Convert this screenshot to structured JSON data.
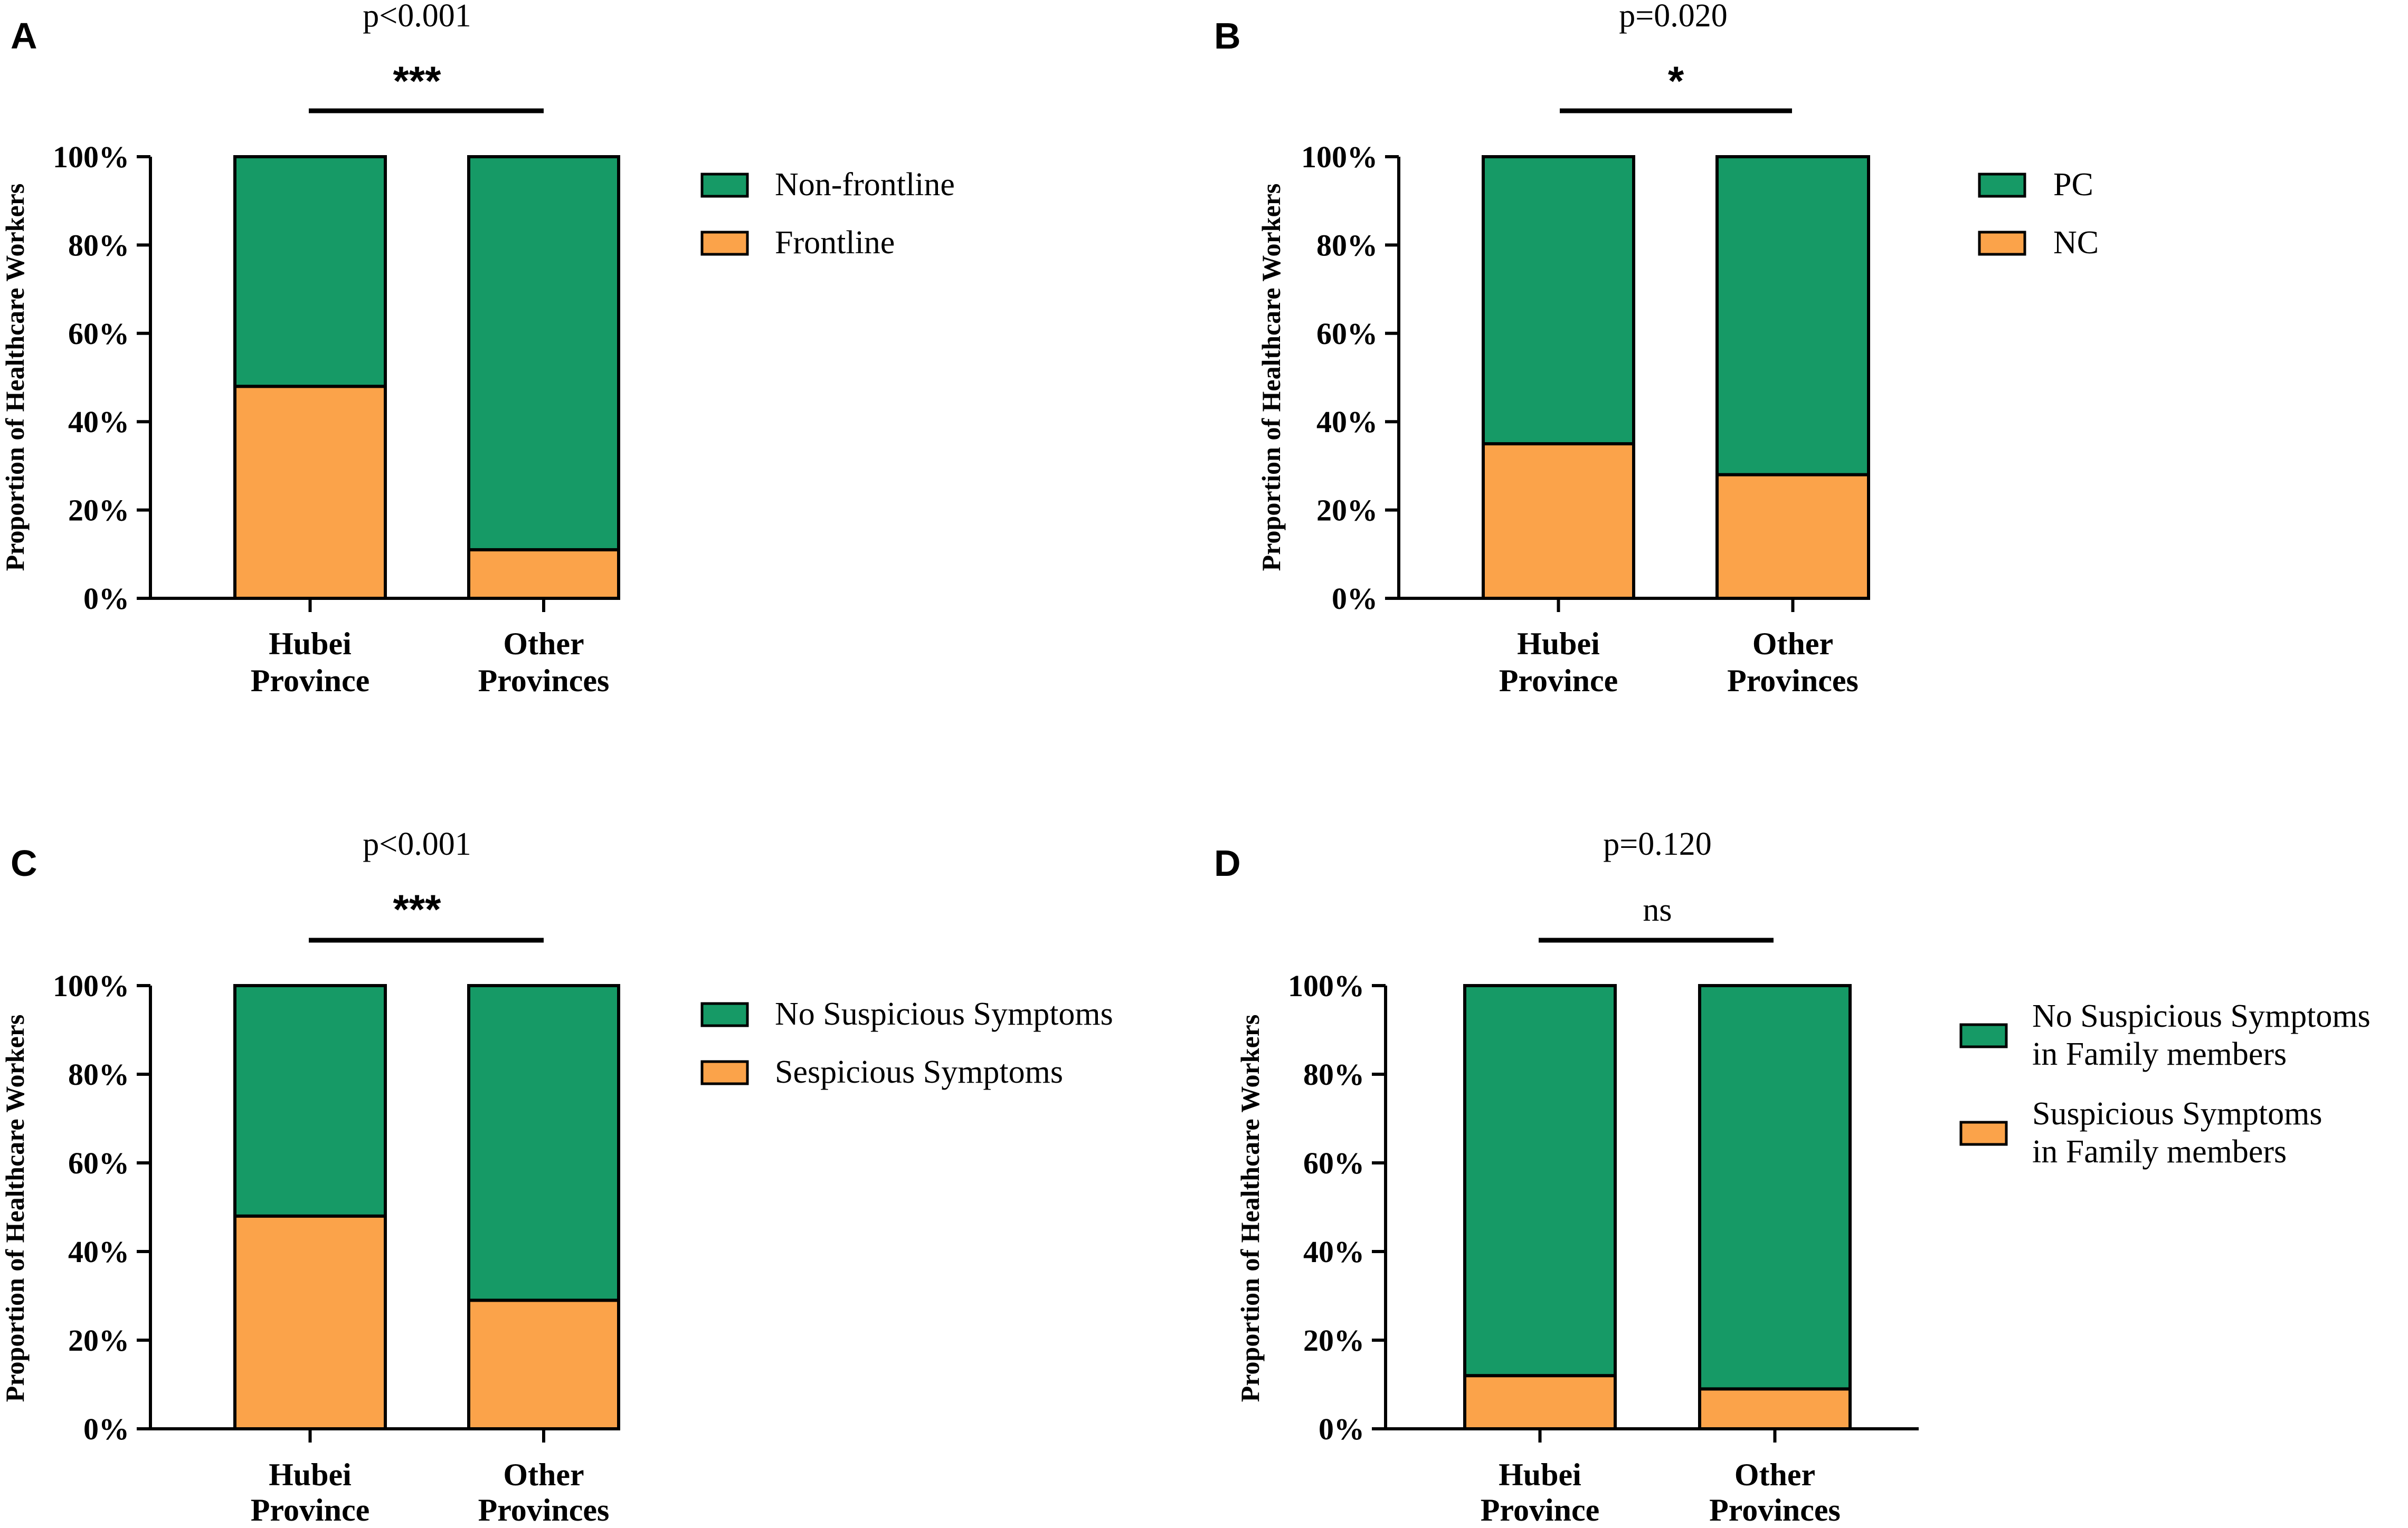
{
  "colors": {
    "green": "#169A66",
    "orange": "#FBA34A",
    "axis": "#000000"
  },
  "chart_data": [
    {
      "panel": "A",
      "type": "bar",
      "stacked": true,
      "pvalue": "p<0.001",
      "significance": "***",
      "ylabel": "Proportion of Healthcare Workers",
      "ylim": [
        0,
        100
      ],
      "yticks": [
        "0%",
        "20%",
        "40%",
        "60%",
        "80%",
        "100%"
      ],
      "categories": [
        [
          "Hubei",
          "Province"
        ],
        [
          "Other",
          "Provinces"
        ]
      ],
      "series": [
        {
          "name": "Frontline",
          "color": "orange",
          "values": [
            48,
            11
          ]
        },
        {
          "name": "Non-frontline",
          "color": "green",
          "values": [
            52,
            89
          ]
        }
      ],
      "legend": [
        {
          "lines": [
            "Non-frontline"
          ],
          "color": "green"
        },
        {
          "lines": [
            "Frontline"
          ],
          "color": "orange"
        }
      ]
    },
    {
      "panel": "B",
      "type": "bar",
      "stacked": true,
      "pvalue": "p=0.020",
      "significance": "*",
      "ylabel": "Proportion of  Healthcare Workers",
      "ylim": [
        0,
        100
      ],
      "yticks": [
        "0%",
        "20%",
        "40%",
        "60%",
        "80%",
        "100%"
      ],
      "categories": [
        [
          "Hubei",
          "Province"
        ],
        [
          "Other",
          "Provinces"
        ]
      ],
      "series": [
        {
          "name": "NC",
          "color": "orange",
          "values": [
            35,
            28
          ]
        },
        {
          "name": "PC",
          "color": "green",
          "values": [
            65,
            72
          ]
        }
      ],
      "legend": [
        {
          "lines": [
            "PC"
          ],
          "color": "green"
        },
        {
          "lines": [
            "NC"
          ],
          "color": "orange"
        }
      ]
    },
    {
      "panel": "C",
      "type": "bar",
      "stacked": true,
      "pvalue": "p<0.001",
      "significance": "***",
      "ylabel": "Proportion of Healthcare Workers",
      "ylim": [
        0,
        100
      ],
      "yticks": [
        "0%",
        "20%",
        "40%",
        "60%",
        "80%",
        "100%"
      ],
      "categories": [
        [
          "Hubei",
          "Province"
        ],
        [
          "Other",
          "Provinces"
        ]
      ],
      "series": [
        {
          "name": "Sespicious Symptoms",
          "color": "orange",
          "values": [
            48,
            29
          ]
        },
        {
          "name": "No Suspicious Symptoms",
          "color": "green",
          "values": [
            52,
            71
          ]
        }
      ],
      "legend": [
        {
          "lines": [
            "No Suspicious Symptoms"
          ],
          "color": "green"
        },
        {
          "lines": [
            "Sespicious Symptoms"
          ],
          "color": "orange"
        }
      ]
    },
    {
      "panel": "D",
      "type": "bar",
      "stacked": true,
      "pvalue": "p=0.120",
      "significance": "ns",
      "ylabel": "Proportion of  Healthcare Workers",
      "ylim": [
        0,
        100
      ],
      "yticks": [
        "0%",
        "20%",
        "40%",
        "60%",
        "80%",
        "100%"
      ],
      "categories": [
        [
          "Hubei",
          "Province"
        ],
        [
          "Other",
          "Provinces"
        ]
      ],
      "series": [
        {
          "name": "Suspicious Symptoms in Family members",
          "color": "orange",
          "values": [
            12,
            9
          ]
        },
        {
          "name": "No Suspicious Symptoms in Family members",
          "color": "green",
          "values": [
            88,
            91
          ]
        }
      ],
      "legend": [
        {
          "lines": [
            "No Suspicious Symptoms",
            "in Family members"
          ],
          "color": "green"
        },
        {
          "lines": [
            "Suspicious Symptoms",
            "in Family members"
          ],
          "color": "orange"
        }
      ]
    }
  ]
}
